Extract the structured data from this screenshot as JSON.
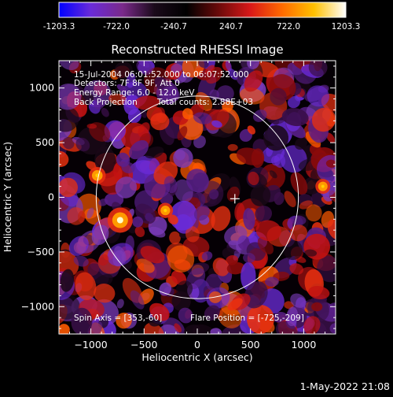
{
  "colorbar": {
    "ticks": [
      "-1203.3",
      "-722.0",
      "-240.7",
      "240.7",
      "722.0",
      "1203.3"
    ],
    "stops": [
      "#0000ff",
      "#6a2bd8",
      "#7a2a8a",
      "#1a0a1a",
      "#000000",
      "#6a0a0a",
      "#d81818",
      "#ff6a00",
      "#ffc000",
      "#ffffff"
    ]
  },
  "chart_data": {
    "type": "heatmap",
    "title": "Reconstructed RHESSI Image",
    "xlabel": "Heliocentric X (arcsec)",
    "ylabel": "Heliocentric Y (arcsec)",
    "xlim": [
      -1300,
      1300
    ],
    "ylim": [
      -1250,
      1250
    ],
    "xticks": [
      -1000,
      -500,
      0,
      500,
      1000
    ],
    "yticks": [
      -1000,
      -500,
      0,
      500,
      1000
    ],
    "xtick_labels": [
      "−1000",
      "−500",
      "0",
      "500",
      "1000"
    ],
    "ytick_labels": [
      "−1000",
      "−500",
      "0",
      "500",
      "1000"
    ],
    "value_range": [
      -1203.3,
      1203.3
    ],
    "solar_limb_radius": 950,
    "marker_position": [
      353,
      -13
    ],
    "bright_spots": [
      {
        "x": -725,
        "y": -209,
        "value": 1203.3
      },
      {
        "x": -940,
        "y": 200,
        "value": 720
      },
      {
        "x": -300,
        "y": -120,
        "value": 620
      },
      {
        "x": 1180,
        "y": 100,
        "value": 600
      }
    ],
    "annotations": {
      "line1": "15-Jul-2004 06:01:52.000 to 06:07:52.000",
      "line2": "Detectors: 7F 8F 9F, Att 0",
      "line3": "Energy Range: 6.0 - 12.0 keV",
      "line4_left": "Back Projection",
      "line4_right": "Total counts: 2.88E+03",
      "bottom_left": "Spin Axis = [353,-60]",
      "bottom_right": "Flare Position = [-725,-209]"
    }
  },
  "footer_timestamp": "1-May-2022 21:08"
}
